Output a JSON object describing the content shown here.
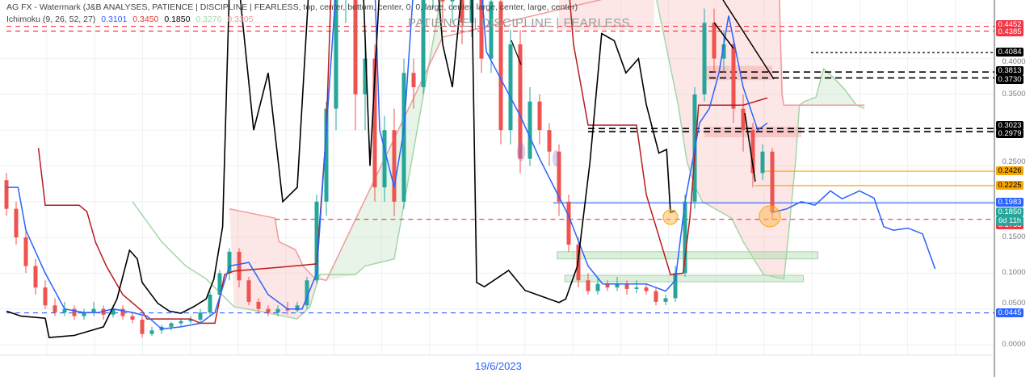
{
  "legend": {
    "line1": "AG FX - Watermark (J&B ANALYSES, PATIENCE  |  DISCIPLINE  |  FEARLESS, top, center, bottom, center, 0, 0, large, center, large, center, large, center)",
    "ichimoku_label": "Ichimoku (9, 26, 52, 27)",
    "values": [
      {
        "text": "0.3101",
        "color": "#2962ff"
      },
      {
        "text": "0.3450",
        "color": "#b71c1c"
      },
      {
        "text": "0.1850",
        "color": "#000000"
      },
      {
        "text": "0.3276",
        "color": "#a5d6a7"
      },
      {
        "text": "0.3305",
        "color": "#ef9a9a"
      }
    ]
  },
  "watermark": "PATIENCE  |  DISCIPLINE  |  FEARLESS",
  "time_axis": {
    "label": "19/6/2023"
  },
  "chart_data": {
    "type": "candlestick",
    "ylim": [
      -0.045,
      0.482
    ],
    "y_ticks": [
      "0.0000",
      "0.0500",
      "0.1000",
      "0.1500",
      "0.2500",
      "0.3500",
      "0.4000"
    ],
    "y_tick_values": [
      0.0,
      0.05,
      0.1,
      0.15,
      0.25,
      0.35,
      0.4
    ],
    "grid": true,
    "colors": {
      "up": "#26a69a",
      "down": "#ef5350",
      "tenkan": "#2962ff",
      "kijun": "#b71c1c",
      "chikou": "#000000",
      "span_a": "#a5d6a7",
      "span_b": "#ef9a9a"
    },
    "candles_ohlc": [
      [
        0.23,
        0.24,
        0.18,
        0.19
      ],
      [
        0.19,
        0.2,
        0.14,
        0.15
      ],
      [
        0.15,
        0.16,
        0.1,
        0.11
      ],
      [
        0.11,
        0.12,
        0.07,
        0.08
      ],
      [
        0.08,
        0.09,
        0.05,
        0.055
      ],
      [
        0.055,
        0.065,
        0.04,
        0.045
      ],
      [
        0.045,
        0.06,
        0.04,
        0.05
      ],
      [
        0.05,
        0.055,
        0.035,
        0.04
      ],
      [
        0.04,
        0.05,
        0.035,
        0.045
      ],
      [
        0.045,
        0.06,
        0.04,
        0.05
      ],
      [
        0.05,
        0.055,
        0.035,
        0.042
      ],
      [
        0.042,
        0.055,
        0.038,
        0.05
      ],
      [
        0.05,
        0.055,
        0.035,
        0.04
      ],
      [
        0.04,
        0.045,
        0.03,
        0.035
      ],
      [
        0.035,
        0.04,
        0.01,
        0.015
      ],
      [
        0.015,
        0.025,
        0.012,
        0.02
      ],
      [
        0.02,
        0.028,
        0.015,
        0.025
      ],
      [
        0.025,
        0.032,
        0.02,
        0.03
      ],
      [
        0.03,
        0.036,
        0.026,
        0.033
      ],
      [
        0.033,
        0.04,
        0.03,
        0.035
      ],
      [
        0.035,
        0.05,
        0.03,
        0.045
      ],
      [
        0.045,
        0.075,
        0.04,
        0.07
      ],
      [
        0.07,
        0.105,
        0.065,
        0.1
      ],
      [
        0.1,
        0.135,
        0.09,
        0.13
      ],
      [
        0.13,
        0.135,
        0.08,
        0.09
      ],
      [
        0.09,
        0.095,
        0.055,
        0.06
      ],
      [
        0.06,
        0.065,
        0.045,
        0.05
      ],
      [
        0.05,
        0.055,
        0.04,
        0.045
      ],
      [
        0.045,
        0.055,
        0.04,
        0.05
      ],
      [
        0.05,
        0.06,
        0.042,
        0.048
      ],
      [
        0.048,
        0.06,
        0.045,
        0.055
      ],
      [
        0.055,
        0.095,
        0.05,
        0.09
      ],
      [
        0.09,
        0.21,
        0.085,
        0.2
      ],
      [
        0.2,
        0.34,
        0.18,
        0.33
      ],
      [
        0.33,
        0.52,
        0.3,
        0.5
      ],
      [
        0.5,
        0.55,
        0.45,
        0.52
      ],
      [
        0.52,
        0.55,
        0.3,
        0.35
      ],
      [
        0.35,
        0.42,
        0.3,
        0.4
      ],
      [
        0.4,
        0.42,
        0.2,
        0.22
      ],
      [
        0.22,
        0.32,
        0.2,
        0.3
      ],
      [
        0.3,
        0.33,
        0.18,
        0.2
      ],
      [
        0.2,
        0.4,
        0.19,
        0.38
      ],
      [
        0.38,
        0.4,
        0.33,
        0.36
      ],
      [
        0.36,
        0.52,
        0.35,
        0.5
      ],
      [
        0.5,
        0.56,
        0.47,
        0.55
      ],
      [
        0.55,
        0.56,
        0.45,
        0.48
      ],
      [
        0.48,
        0.52,
        0.45,
        0.5
      ],
      [
        0.5,
        0.52,
        0.42,
        0.45
      ],
      [
        0.45,
        0.52,
        0.43,
        0.5
      ],
      [
        0.5,
        0.52,
        0.38,
        0.4
      ],
      [
        0.4,
        0.5,
        0.38,
        0.48
      ],
      [
        0.48,
        0.5,
        0.28,
        0.3
      ],
      [
        0.3,
        0.44,
        0.28,
        0.42
      ],
      [
        0.42,
        0.44,
        0.24,
        0.26
      ],
      [
        0.26,
        0.36,
        0.25,
        0.34
      ],
      [
        0.34,
        0.35,
        0.28,
        0.3
      ],
      [
        0.3,
        0.31,
        0.25,
        0.27
      ],
      [
        0.27,
        0.28,
        0.18,
        0.2
      ],
      [
        0.2,
        0.21,
        0.13,
        0.14
      ],
      [
        0.14,
        0.15,
        0.08,
        0.09
      ],
      [
        0.09,
        0.1,
        0.07,
        0.075
      ],
      [
        0.075,
        0.095,
        0.07,
        0.085
      ],
      [
        0.085,
        0.09,
        0.075,
        0.08
      ],
      [
        0.08,
        0.095,
        0.075,
        0.085
      ],
      [
        0.085,
        0.09,
        0.07,
        0.078
      ],
      [
        0.078,
        0.09,
        0.072,
        0.08
      ],
      [
        0.08,
        0.085,
        0.07,
        0.075
      ],
      [
        0.075,
        0.08,
        0.055,
        0.06
      ],
      [
        0.06,
        0.07,
        0.055,
        0.065
      ],
      [
        0.065,
        0.11,
        0.06,
        0.1
      ],
      [
        0.1,
        0.21,
        0.095,
        0.2
      ],
      [
        0.2,
        0.36,
        0.19,
        0.35
      ],
      [
        0.35,
        0.47,
        0.34,
        0.45
      ],
      [
        0.45,
        0.47,
        0.38,
        0.4
      ],
      [
        0.4,
        0.44,
        0.38,
        0.42
      ],
      [
        0.42,
        0.43,
        0.31,
        0.33
      ],
      [
        0.33,
        0.35,
        0.27,
        0.3
      ],
      [
        0.3,
        0.31,
        0.22,
        0.24
      ],
      [
        0.24,
        0.28,
        0.23,
        0.27
      ],
      [
        0.27,
        0.275,
        0.175,
        0.185
      ]
    ],
    "tenkan": [
      [
        0,
        0.22
      ],
      [
        1.2,
        0.22
      ],
      [
        2,
        0.16
      ],
      [
        4,
        0.1
      ],
      [
        6,
        0.05
      ],
      [
        8,
        0.045
      ],
      [
        9.5,
        0.045
      ],
      [
        11,
        0.05
      ],
      [
        13,
        0.045
      ],
      [
        14.5,
        0.04
      ],
      [
        16,
        0.022
      ],
      [
        18,
        0.025
      ],
      [
        20,
        0.03
      ],
      [
        21.5,
        0.045
      ],
      [
        23,
        0.11
      ],
      [
        25,
        0.115
      ],
      [
        27,
        0.07
      ],
      [
        29,
        0.05
      ],
      [
        30.5,
        0.05
      ],
      [
        32,
        0.1
      ],
      [
        33,
        0.3
      ],
      [
        34,
        0.5
      ],
      [
        38,
        0.5
      ],
      [
        38.5,
        0.3
      ],
      [
        40,
        0.22
      ],
      [
        41,
        0.3
      ],
      [
        42,
        0.5
      ],
      [
        49,
        0.5
      ],
      [
        49.5,
        0.41
      ],
      [
        53,
        0.32
      ],
      [
        55,
        0.26
      ],
      [
        56.5,
        0.22
      ],
      [
        58,
        0.18
      ],
      [
        60,
        0.11
      ],
      [
        61.5,
        0.085
      ],
      [
        66,
        0.085
      ],
      [
        68,
        0.075
      ],
      [
        69,
        0.09
      ],
      [
        70,
        0.2
      ],
      [
        71.5,
        0.31
      ],
      [
        72.5,
        0.33
      ],
      [
        73.5,
        0.38
      ],
      [
        74.5,
        0.46
      ],
      [
        76,
        0.36
      ],
      [
        77.5,
        0.3
      ],
      [
        78.5,
        0.31
      ]
    ],
    "kijun": [
      [
        3.3,
        0.275
      ],
      [
        4,
        0.195
      ],
      [
        7.5,
        0.195
      ],
      [
        8.3,
        0.186
      ],
      [
        9.2,
        0.143
      ],
      [
        10.3,
        0.11
      ],
      [
        12,
        0.07
      ],
      [
        14,
        0.047
      ],
      [
        14.5,
        0.036
      ],
      [
        19,
        0.036
      ],
      [
        20,
        0.03
      ],
      [
        21.5,
        0.03
      ],
      [
        22.5,
        0.098
      ],
      [
        23.5,
        0.103
      ],
      [
        28,
        0.108
      ],
      [
        32,
        0.113
      ],
      [
        33,
        0.3
      ],
      [
        33.5,
        0.5
      ],
      [
        58,
        0.5
      ],
      [
        58.5,
        0.42
      ],
      [
        60,
        0.307
      ],
      [
        65,
        0.307
      ],
      [
        66,
        0.21
      ],
      [
        68.5,
        0.098
      ],
      [
        69.8,
        0.1
      ],
      [
        70.5,
        0.177
      ],
      [
        71.4,
        0.335
      ],
      [
        76,
        0.335
      ],
      [
        78.5,
        0.345
      ]
    ],
    "chikou": [
      [
        0,
        0.047
      ],
      [
        1.5,
        0.04
      ],
      [
        4,
        0.037
      ],
      [
        4.4,
        0.01
      ],
      [
        7,
        0.013
      ],
      [
        10,
        0.025
      ],
      [
        11.4,
        0.064
      ],
      [
        12.7,
        0.132
      ],
      [
        13.5,
        0.12
      ],
      [
        14,
        0.087
      ],
      [
        15.6,
        0.058
      ],
      [
        16.8,
        0.047
      ],
      [
        18,
        0.044
      ],
      [
        19.3,
        0.053
      ],
      [
        20.6,
        0.064
      ],
      [
        21.4,
        0.092
      ],
      [
        22.3,
        0.165
      ],
      [
        23,
        0.5
      ],
      [
        24,
        0.5
      ],
      [
        25.5,
        0.3
      ],
      [
        27,
        0.38
      ],
      [
        28.5,
        0.2
      ],
      [
        30,
        0.22
      ],
      [
        31.2,
        0.5
      ],
      [
        36.8,
        0.5
      ],
      [
        37.5,
        0.25
      ],
      [
        38.5,
        0.5
      ],
      [
        44.5,
        0.5
      ],
      [
        45,
        0.42
      ],
      [
        46,
        0.36
      ],
      [
        47,
        0.5
      ],
      [
        48,
        0.5
      ],
      [
        48.5,
        0.087
      ],
      [
        49.3,
        0.081
      ],
      [
        51.8,
        0.104
      ],
      [
        53.5,
        0.076
      ],
      [
        57,
        0.059
      ],
      [
        57.7,
        0.064
      ],
      [
        58.9,
        0.11
      ],
      [
        60.2,
        0.256
      ],
      [
        61.4,
        0.435
      ],
      [
        62.7,
        0.425
      ],
      [
        63.9,
        0.38
      ],
      [
        65.2,
        0.4
      ],
      [
        66,
        0.336
      ],
      [
        67.3,
        0.268
      ],
      [
        68.1,
        0.273
      ],
      [
        68.5,
        0.185
      ],
      [
        69,
        0.187
      ]
    ],
    "span_a": [
      [
        13,
        0.2
      ],
      [
        16,
        0.144
      ],
      [
        18.5,
        0.11
      ],
      [
        20.6,
        0.092
      ],
      [
        23.5,
        0.053
      ],
      [
        26,
        0.047
      ],
      [
        30,
        0.036
      ],
      [
        31.3,
        0.053
      ],
      [
        32.3,
        0.098
      ],
      [
        36,
        0.098
      ],
      [
        37,
        0.11
      ],
      [
        40,
        0.12
      ],
      [
        45,
        0.5
      ],
      [
        66.8,
        0.5
      ],
      [
        69.3,
        0.335
      ],
      [
        70.2,
        0.256
      ],
      [
        71,
        0.222
      ],
      [
        71.8,
        0.2
      ],
      [
        74.8,
        0.177
      ],
      [
        76,
        0.144
      ],
      [
        78.1,
        0.098
      ],
      [
        80.2,
        0.092
      ],
      [
        80.6,
        0.144
      ],
      [
        81.4,
        0.256
      ],
      [
        81.8,
        0.335
      ],
      [
        82.3,
        0.34
      ],
      [
        83.5,
        0.346
      ],
      [
        84.3,
        0.386
      ],
      [
        85.2,
        0.375
      ],
      [
        86.4,
        0.358
      ],
      [
        87.7,
        0.335
      ],
      [
        88.5,
        0.33
      ]
    ],
    "span_b": [
      [
        23,
        0.19
      ],
      [
        27.7,
        0.177
      ],
      [
        28.1,
        0.144
      ],
      [
        29.8,
        0.133
      ],
      [
        30.6,
        0.11
      ],
      [
        31.8,
        0.093
      ],
      [
        33,
        0.09
      ],
      [
        45,
        0.43
      ],
      [
        66.8,
        0.5
      ],
      [
        79.7,
        0.5
      ],
      [
        80,
        0.35
      ],
      [
        80.2,
        0.335
      ],
      [
        82.3,
        0.335
      ],
      [
        88.5,
        0.335
      ]
    ],
    "horizontal_levels": [
      {
        "price": 0.4452,
        "label": "0.4452",
        "color": "#f23645",
        "style": "dashed"
      },
      {
        "price": 0.4385,
        "label": "0.4385",
        "color": "#f23645",
        "style": "dashed"
      },
      {
        "price": 0.4084,
        "label": "0.4084",
        "color": "#000000",
        "style": "dotted"
      },
      {
        "price": 0.3813,
        "label": "0.3813",
        "color": "#000000",
        "style": "dashed"
      },
      {
        "price": 0.373,
        "label": "0.3730",
        "color": "#000000",
        "style": "dashed"
      },
      {
        "price": 0.3023,
        "label": "0.3023",
        "color": "#000000",
        "style": "dashed"
      },
      {
        "price": 0.2979,
        "label": "0.2979",
        "color": "#000000",
        "style": "dashed"
      },
      {
        "price": 0.2426,
        "label": "0.2426",
        "color": "#f7a600",
        "style": "solid"
      },
      {
        "price": 0.2225,
        "label": "0.2225",
        "color": "#f7a600",
        "style": "solid"
      },
      {
        "price": 0.1983,
        "label": "0.1983",
        "color": "#2962ff",
        "style": "solid"
      },
      {
        "price": 0.1753,
        "label": "0.1753",
        "color": "#f23645",
        "style": "dashed"
      },
      {
        "price": 0.0445,
        "label": "0.0445",
        "color": "#2962ff",
        "style": "dashed"
      }
    ],
    "last_price": {
      "label": "0.1850",
      "countdown": "6d 11h",
      "color": "#26a69a"
    },
    "projection_path": [
      [
        79,
        0.185
      ],
      [
        80.5,
        0.19
      ],
      [
        82,
        0.2
      ],
      [
        83.4,
        0.195
      ],
      [
        85,
        0.215
      ],
      [
        86.2,
        0.204
      ],
      [
        88,
        0.215
      ],
      [
        89.5,
        0.205
      ],
      [
        90.5,
        0.165
      ],
      [
        91.5,
        0.16
      ],
      [
        93,
        0.163
      ],
      [
        94.5,
        0.155
      ],
      [
        95.8,
        0.106
      ]
    ],
    "zones": [
      {
        "from": 0.12,
        "to": 0.13,
        "start": 56.8,
        "end": 83.7,
        "color": "#a5d6a7"
      },
      {
        "from": 0.088,
        "to": 0.097,
        "start": 57.6,
        "end": 82.2,
        "color": "#a5d6a7"
      }
    ]
  }
}
